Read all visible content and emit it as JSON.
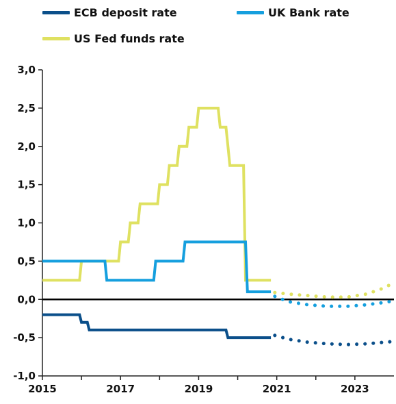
{
  "chart_data": {
    "type": "line",
    "title": "",
    "xlabel": "",
    "ylabel": "",
    "xlim": [
      2015,
      2024
    ],
    "ylim": [
      -1.0,
      3.0
    ],
    "x_ticks": [
      "2015",
      "2017",
      "2019",
      "2021",
      "2023"
    ],
    "y_ticks": [
      "3,0",
      "2,5",
      "2,0",
      "1,5",
      "1,0",
      "0,5",
      "0,0",
      "-0,5",
      "-1,0"
    ],
    "grid": false,
    "legend": "top",
    "series": [
      {
        "name": "ECB deposit rate",
        "color": "#0b4f8a",
        "values": [
          [
            2015.0,
            -0.2
          ],
          [
            2015.95,
            -0.2
          ],
          [
            2016.0,
            -0.3
          ],
          [
            2016.15,
            -0.3
          ],
          [
            2016.2,
            -0.4
          ],
          [
            2019.7,
            -0.4
          ],
          [
            2019.75,
            -0.5
          ],
          [
            2020.85,
            -0.5
          ]
        ],
        "forecast": [
          [
            2020.95,
            -0.47
          ],
          [
            2021.3,
            -0.52
          ],
          [
            2021.8,
            -0.56
          ],
          [
            2022.3,
            -0.58
          ],
          [
            2022.8,
            -0.59
          ],
          [
            2023.3,
            -0.58
          ],
          [
            2023.75,
            -0.56
          ],
          [
            2024.0,
            -0.55
          ]
        ]
      },
      {
        "name": "UK Bank rate",
        "color": "#159fde",
        "values": [
          [
            2015.0,
            0.5
          ],
          [
            2016.6,
            0.5
          ],
          [
            2016.65,
            0.25
          ],
          [
            2017.85,
            0.25
          ],
          [
            2017.9,
            0.5
          ],
          [
            2018.6,
            0.5
          ],
          [
            2018.65,
            0.75
          ],
          [
            2020.2,
            0.75
          ],
          [
            2020.25,
            0.1
          ],
          [
            2020.85,
            0.1
          ]
        ],
        "forecast": [
          [
            2020.95,
            0.04
          ],
          [
            2021.3,
            -0.03
          ],
          [
            2021.8,
            -0.07
          ],
          [
            2022.3,
            -0.09
          ],
          [
            2022.8,
            -0.09
          ],
          [
            2023.3,
            -0.07
          ],
          [
            2023.75,
            -0.04
          ],
          [
            2024.0,
            -0.02
          ]
        ]
      },
      {
        "name": "US Fed funds rate",
        "color": "#dfe161",
        "values": [
          [
            2015.0,
            0.25
          ],
          [
            2015.95,
            0.25
          ],
          [
            2016.0,
            0.5
          ],
          [
            2016.95,
            0.5
          ],
          [
            2017.0,
            0.75
          ],
          [
            2017.2,
            0.75
          ],
          [
            2017.25,
            1.0
          ],
          [
            2017.45,
            1.0
          ],
          [
            2017.5,
            1.25
          ],
          [
            2017.95,
            1.25
          ],
          [
            2018.0,
            1.5
          ],
          [
            2018.2,
            1.5
          ],
          [
            2018.25,
            1.75
          ],
          [
            2018.45,
            1.75
          ],
          [
            2018.5,
            2.0
          ],
          [
            2018.7,
            2.0
          ],
          [
            2018.75,
            2.25
          ],
          [
            2018.95,
            2.25
          ],
          [
            2019.0,
            2.5
          ],
          [
            2019.5,
            2.5
          ],
          [
            2019.55,
            2.25
          ],
          [
            2019.7,
            2.25
          ],
          [
            2019.75,
            2.0
          ],
          [
            2019.8,
            1.75
          ],
          [
            2020.15,
            1.75
          ],
          [
            2020.2,
            0.25
          ],
          [
            2020.85,
            0.25
          ]
        ],
        "forecast": [
          [
            2020.95,
            0.09
          ],
          [
            2021.3,
            0.07
          ],
          [
            2021.8,
            0.05
          ],
          [
            2022.3,
            0.03
          ],
          [
            2022.8,
            0.03
          ],
          [
            2023.3,
            0.07
          ],
          [
            2023.75,
            0.15
          ],
          [
            2024.0,
            0.22
          ]
        ]
      }
    ]
  }
}
